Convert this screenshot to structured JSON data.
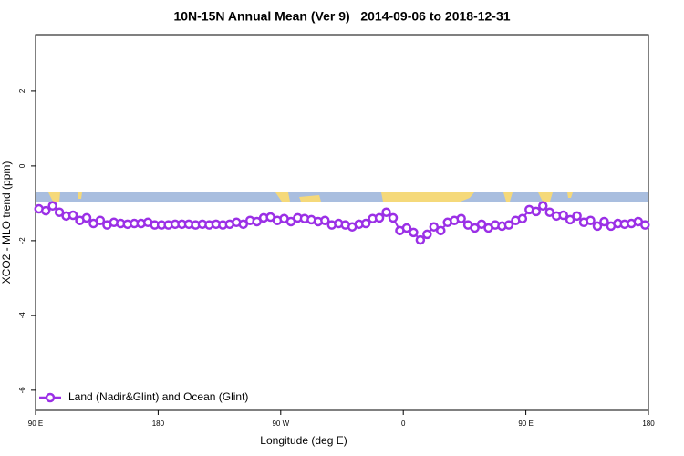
{
  "chart_data": {
    "type": "line",
    "title": "10N-15N Annual Mean (Ver 9)   2014-09-06 to 2018-12-31",
    "xlabel": "Longitude (deg E)",
    "ylabel": "XCO2 - MLO trend (ppm)",
    "xlim": [
      90,
      540
    ],
    "ylim": [
      -6.54,
      3.51
    ],
    "xticks": [
      {
        "value": 90,
        "label": "90 E"
      },
      180,
      {
        "value": 270,
        "label": "90 W"
      },
      {
        "value": 360,
        "label": "0"
      },
      {
        "value": 450,
        "label": "90 E"
      },
      {
        "value": 540,
        "label": "180"
      }
    ],
    "yticks": [
      2,
      0,
      -2,
      -4,
      -6
    ],
    "legend": "bottom-left",
    "x": [
      92.5,
      97.5,
      102.5,
      107.5,
      112.5,
      117.5,
      122.5,
      127.5,
      132.5,
      137.5,
      142.5,
      147.5,
      152.5,
      157.5,
      162.5,
      167.5,
      172.5,
      177.5,
      182.5,
      187.5,
      192.5,
      197.5,
      202.5,
      207.5,
      212.5,
      217.5,
      222.5,
      227.5,
      232.5,
      237.5,
      242.5,
      247.5,
      252.5,
      257.5,
      262.5,
      267.5,
      272.5,
      277.5,
      282.5,
      287.5,
      292.5,
      297.5,
      302.5,
      307.5,
      312.5,
      317.5,
      322.5,
      327.5,
      332.5,
      337.5,
      342.5,
      347.5,
      352.5,
      357.5,
      362.5,
      367.5,
      372.5,
      377.5,
      382.5,
      387.5,
      392.5,
      397.5,
      402.5,
      407.5,
      412.5,
      417.5,
      422.5,
      427.5,
      432.5,
      437.5,
      442.5,
      447.5,
      452.5,
      457.5,
      462.5,
      467.5,
      472.5,
      477.5,
      482.5,
      487.5,
      492.5,
      497.5,
      502.5,
      507.5,
      512.5,
      517.5,
      522.5,
      527.5,
      532.5,
      537.5
    ],
    "series": [
      {
        "name": "Land (Nadir&Glint) and Ocean (Glint)",
        "color": "#9b30e6",
        "values": [
          -1.15,
          -1.2,
          -1.07,
          -1.24,
          -1.34,
          -1.32,
          -1.46,
          -1.39,
          -1.54,
          -1.46,
          -1.58,
          -1.51,
          -1.54,
          -1.56,
          -1.54,
          -1.54,
          -1.51,
          -1.58,
          -1.58,
          -1.58,
          -1.56,
          -1.56,
          -1.56,
          -1.58,
          -1.56,
          -1.58,
          -1.56,
          -1.58,
          -1.56,
          -1.51,
          -1.56,
          -1.46,
          -1.49,
          -1.39,
          -1.37,
          -1.46,
          -1.41,
          -1.49,
          -1.39,
          -1.41,
          -1.44,
          -1.49,
          -1.46,
          -1.58,
          -1.54,
          -1.58,
          -1.63,
          -1.56,
          -1.54,
          -1.41,
          -1.39,
          -1.24,
          -1.39,
          -1.73,
          -1.66,
          -1.78,
          -1.98,
          -1.83,
          -1.63,
          -1.73,
          -1.51,
          -1.46,
          -1.41,
          -1.58,
          -1.66,
          -1.56,
          -1.66,
          -1.58,
          -1.61,
          -1.58,
          -1.46,
          -1.41,
          -1.17,
          -1.22,
          -1.07,
          -1.24,
          -1.34,
          -1.32,
          -1.44,
          -1.34,
          -1.51,
          -1.46,
          -1.61,
          -1.49,
          -1.61,
          -1.54,
          -1.56,
          -1.54,
          -1.49,
          -1.58
        ]
      }
    ]
  }
}
